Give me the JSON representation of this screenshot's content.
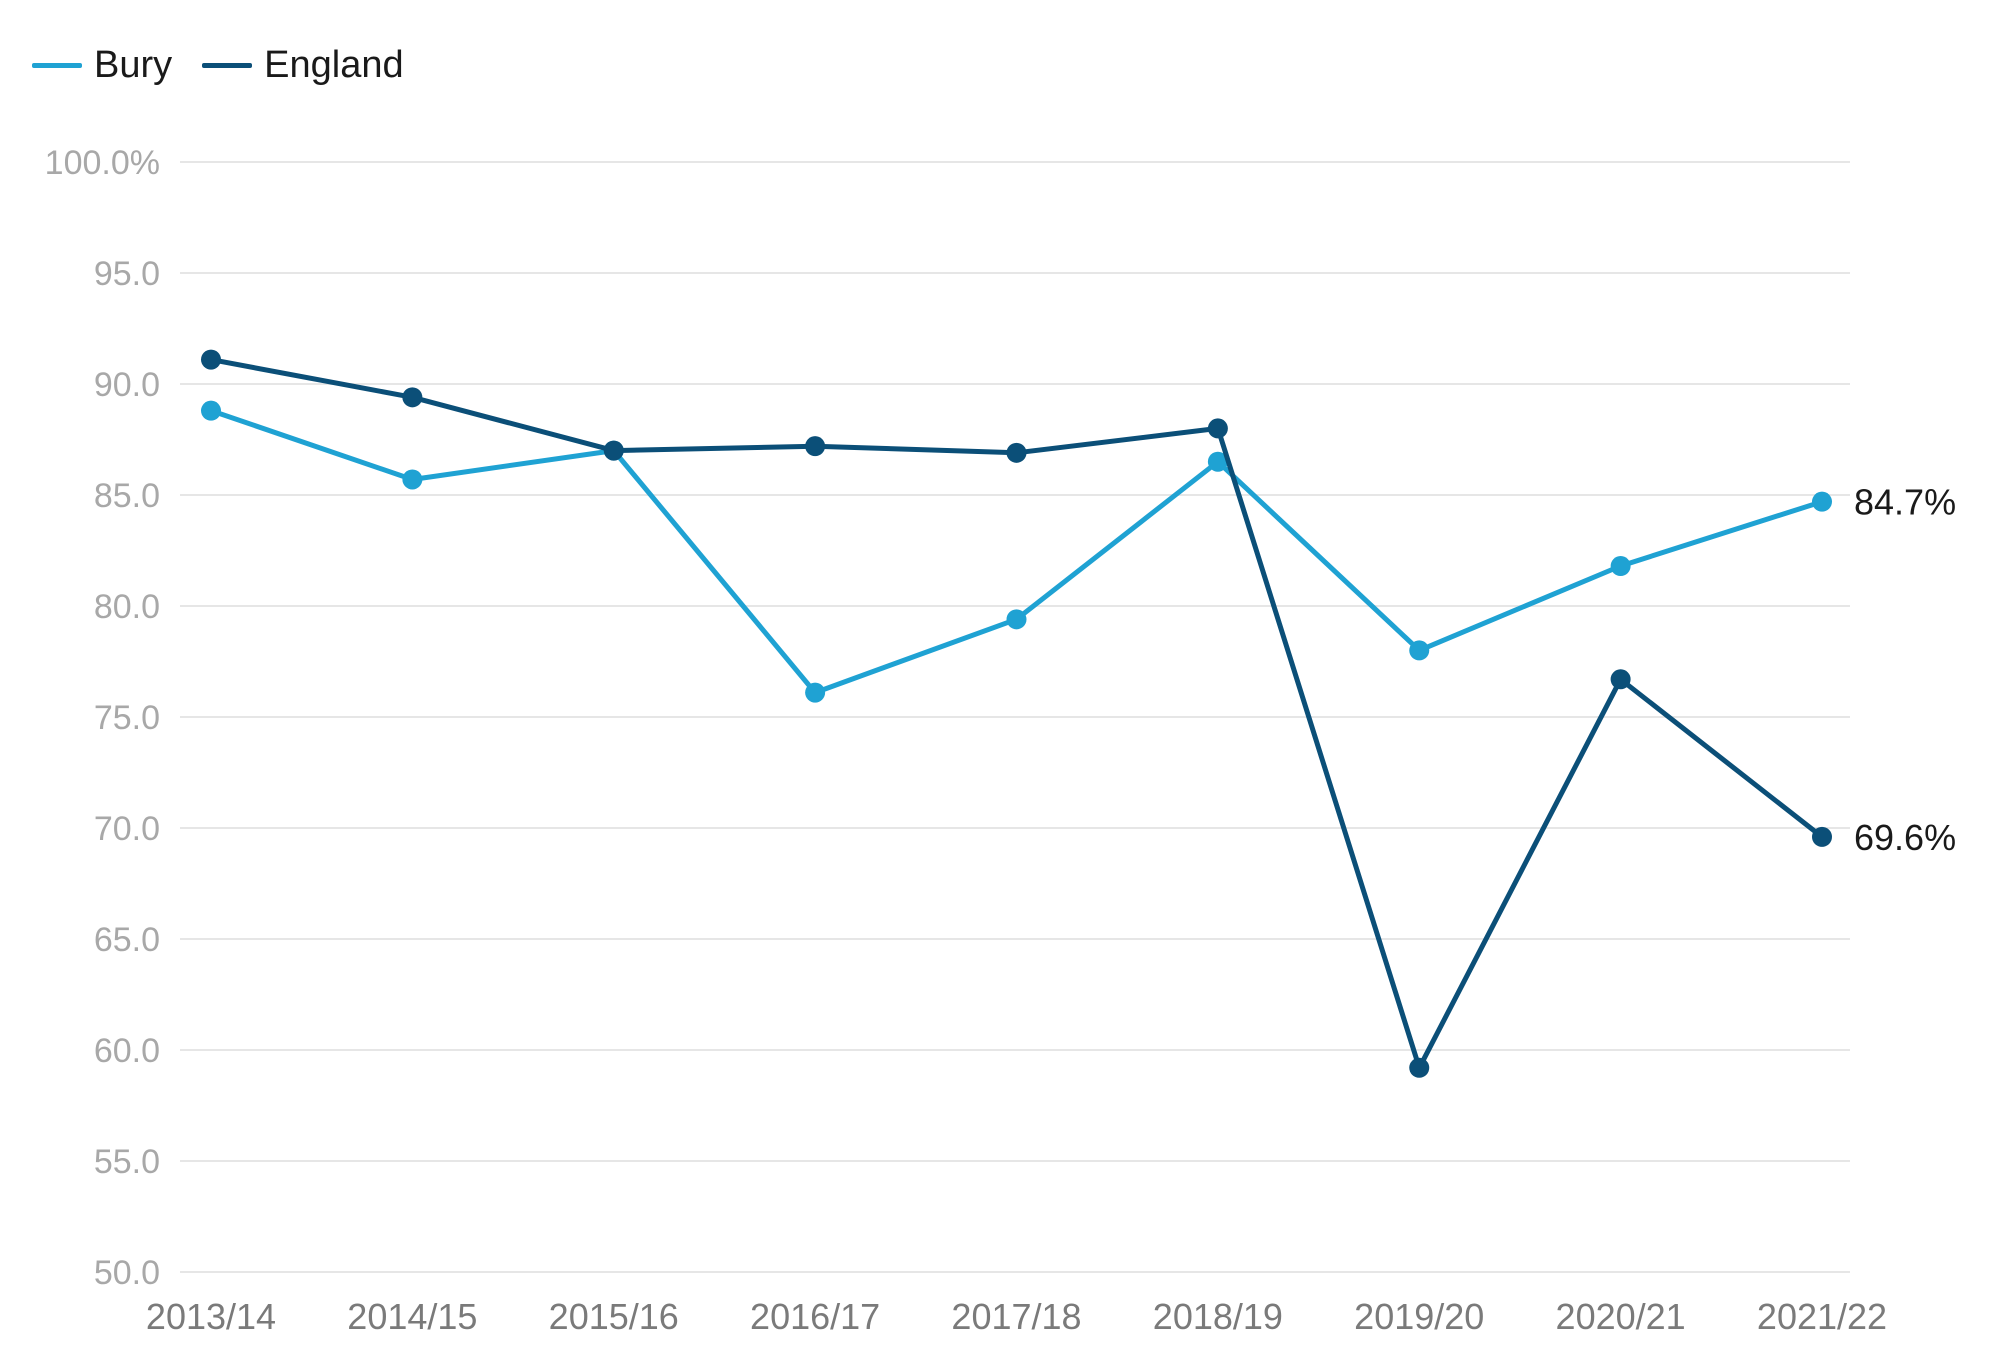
{
  "chart_data": {
    "type": "line",
    "categories": [
      "2013/14",
      "2014/15",
      "2015/16",
      "2016/17",
      "2017/18",
      "2018/19",
      "2019/20",
      "2020/21",
      "2021/22"
    ],
    "series": [
      {
        "name": "Bury",
        "color": "#1fa2d3",
        "values": [
          88.8,
          85.7,
          87.0,
          76.1,
          79.4,
          86.5,
          78.0,
          81.8,
          84.7
        ],
        "end_label": "84.7%"
      },
      {
        "name": "England",
        "color": "#0b4f78",
        "values": [
          91.1,
          89.4,
          87.0,
          87.2,
          86.9,
          88.0,
          59.2,
          76.7,
          69.6
        ],
        "end_label": "69.6%"
      }
    ],
    "yticks": [
      "100.0%",
      "95.0",
      "90.0",
      "85.0",
      "80.0",
      "75.0",
      "70.0",
      "65.0",
      "60.0",
      "55.0",
      "50.0"
    ],
    "ylim": [
      50,
      100
    ],
    "grid": true,
    "legend": "top-left",
    "title": "",
    "xlabel": "",
    "ylabel": ""
  }
}
